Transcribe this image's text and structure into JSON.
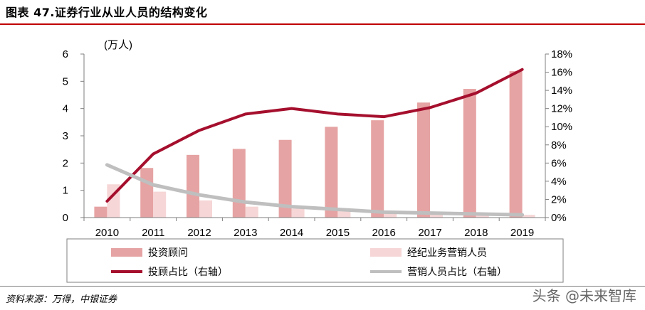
{
  "title": "图表 47.证券行业从业人员的结构变化",
  "source": "资料来源：万得，中银证券",
  "watermark": "头条 @未来智库",
  "chart_data": {
    "type": "bar",
    "unit_label": "(万人)",
    "categories": [
      "2010",
      "2011",
      "2012",
      "2013",
      "2014",
      "2015",
      "2016",
      "2017",
      "2018",
      "2019"
    ],
    "ylim": [
      0,
      6
    ],
    "yticks": [
      "0",
      "1",
      "2",
      "3",
      "4",
      "5",
      "6"
    ],
    "y2lim": [
      0,
      18
    ],
    "y2ticks": [
      "0%",
      "2%",
      "4%",
      "6%",
      "8%",
      "10%",
      "12%",
      "14%",
      "16%",
      "18%"
    ],
    "series": [
      {
        "name": "投资顾问",
        "kind": "bar",
        "axis": "left",
        "color": "#e6a3a3",
        "values": [
          0.4,
          1.82,
          2.3,
          2.52,
          2.85,
          3.33,
          3.57,
          4.22,
          4.72,
          5.37
        ]
      },
      {
        "name": "经纪业务营销人员",
        "kind": "bar",
        "axis": "left",
        "color": "#f6d6d6",
        "values": [
          1.22,
          0.95,
          0.63,
          0.4,
          0.33,
          0.27,
          0.22,
          0.15,
          0.12,
          0.1
        ]
      },
      {
        "name": "投顾占比（右轴）",
        "kind": "line",
        "axis": "right",
        "color": "#a50f2d",
        "values": [
          1.8,
          7.0,
          9.6,
          11.4,
          12.0,
          11.4,
          11.1,
          12.1,
          13.7,
          16.3
        ]
      },
      {
        "name": "营销人员占比（右轴）",
        "kind": "line",
        "axis": "right",
        "color": "#bfbfbf",
        "values": [
          5.8,
          3.6,
          2.5,
          1.7,
          1.2,
          0.9,
          0.6,
          0.5,
          0.4,
          0.3
        ]
      }
    ]
  }
}
